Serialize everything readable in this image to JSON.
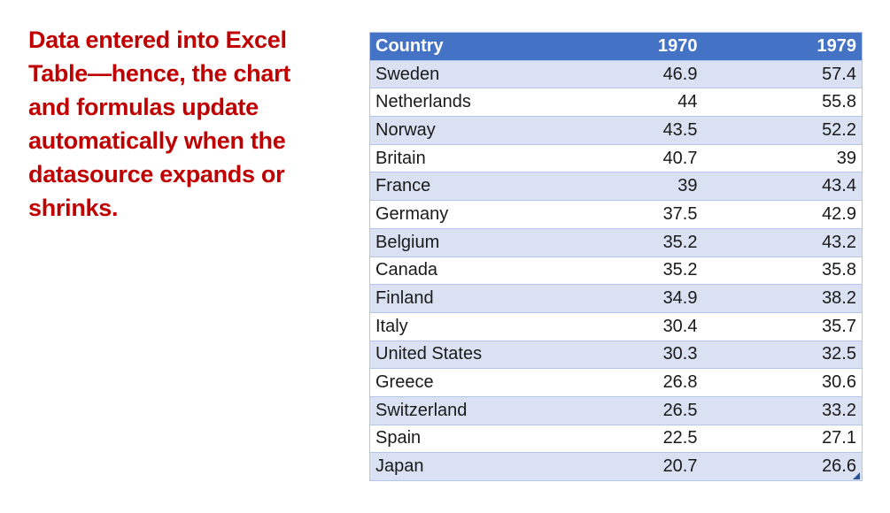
{
  "page": {
    "background": "#FFFFFF"
  },
  "caption": {
    "text": "Data entered into Excel\nTable—hence, the chart\nand formulas update\nautomatically when the\ndatasource expands or\nshrinks.",
    "color": "#C00000"
  },
  "table": {
    "columns": [
      "Country",
      "1970",
      "1979"
    ],
    "rows": [
      [
        "Sweden",
        "46.9",
        "57.4"
      ],
      [
        "Netherlands",
        "44",
        "55.8"
      ],
      [
        "Norway",
        "43.5",
        "52.2"
      ],
      [
        "Britain",
        "40.7",
        "39"
      ],
      [
        "France",
        "39",
        "43.4"
      ],
      [
        "Germany",
        "37.5",
        "42.9"
      ],
      [
        "Belgium",
        "35.2",
        "43.2"
      ],
      [
        "Canada",
        "35.2",
        "35.8"
      ],
      [
        "Finland",
        "34.9",
        "38.2"
      ],
      [
        "Italy",
        "30.4",
        "35.7"
      ],
      [
        "United States",
        "30.3",
        "32.5"
      ],
      [
        "Greece",
        "26.8",
        "30.6"
      ],
      [
        "Switzerland",
        "26.5",
        "33.2"
      ],
      [
        "Spain",
        "22.5",
        "27.1"
      ],
      [
        "Japan",
        "20.7",
        "26.6"
      ]
    ],
    "colors": {
      "header_bg": "#4472C4",
      "header_text": "#FFFFFF",
      "band_row": "#D9E1F2",
      "border": "#B4C6E7",
      "cell_text": "#1A1A1A",
      "resize_handle": "#2E5395"
    }
  }
}
